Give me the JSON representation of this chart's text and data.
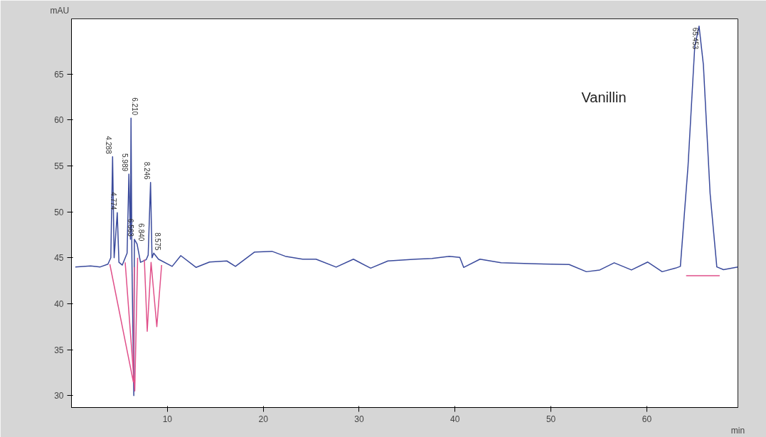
{
  "chart_data": {
    "type": "line",
    "xlabel": "min",
    "ylabel": "mAU",
    "xlim": [
      0,
      69.5
    ],
    "xticks": [
      10,
      20,
      30,
      40,
      50,
      60
    ],
    "ylim": [
      28.7,
      71.0
    ],
    "yticks": [
      30,
      35,
      40,
      45,
      50,
      55,
      60,
      65
    ],
    "grid": false,
    "marker": "none",
    "line_style": "solid",
    "series": [
      {
        "color": "#3a4a9c",
        "x": [
          0.4,
          2,
          3,
          3.8,
          4.1,
          4.288,
          4.45,
          4.774,
          4.95,
          5.3,
          5.8,
          5.989,
          6.15,
          6.21,
          6.3,
          6.5,
          6.563,
          6.84,
          7.2,
          7.8,
          8.0,
          8.246,
          8.4,
          8.575,
          9.07,
          10.5,
          11.4,
          13.0,
          14.4,
          16.2,
          17.1,
          19.1,
          20.9,
          22.3,
          24.1,
          25.5,
          27.6,
          29.4,
          31.2,
          33.0,
          35.9,
          37.6,
          39.4,
          40.5,
          40.9,
          42.6,
          44.8,
          48.4,
          51.9,
          53.7,
          55.1,
          56.6,
          58.4,
          60.1,
          61.6,
          63.0,
          63.5,
          64.3,
          65.0,
          65.45,
          65.9,
          66.6,
          67.3,
          68.0,
          69.5
        ],
        "values": [
          44.0,
          44.1,
          44.0,
          44.3,
          45.0,
          56.0,
          45.0,
          49.9,
          44.5,
          44.2,
          45.5,
          54.1,
          47.0,
          60.2,
          45.0,
          30.0,
          47.0,
          46.5,
          44.5,
          44.8,
          45.3,
          53.2,
          45.0,
          45.5,
          44.84,
          44.06,
          45.23,
          43.95,
          44.53,
          44.65,
          44.06,
          45.62,
          45.7,
          45.16,
          44.84,
          44.84,
          43.98,
          44.84,
          43.87,
          44.65,
          44.84,
          44.92,
          45.16,
          45.04,
          43.95,
          44.84,
          44.45,
          44.34,
          44.26,
          43.48,
          43.67,
          44.45,
          43.67,
          44.53,
          43.48,
          43.87,
          44.06,
          55.0,
          68.0,
          70.2,
          66.0,
          52.0,
          44.0,
          43.7,
          44.0
        ]
      },
      {
        "color": "#e0508a",
        "x": [
          4.0,
          6.45,
          6.55,
          null,
          5.6,
          6.6,
          6.9,
          null,
          7.6,
          7.9,
          8.3,
          8.9,
          9.4,
          null,
          64.1,
          67.6
        ],
        "values": [
          44.3,
          31.5,
          44.0,
          null,
          44.5,
          30.5,
          45.0,
          null,
          44.8,
          37.0,
          44.5,
          37.5,
          44.2,
          null,
          43.05,
          43.05
        ]
      }
    ],
    "annotations": [
      {
        "text": "4.288",
        "x": 4.288,
        "y": 56.0
      },
      {
        "text": "4.774",
        "x": 4.774,
        "y": 49.9
      },
      {
        "text": "5.989",
        "x": 5.989,
        "y": 54.1
      },
      {
        "text": "6.210",
        "x": 6.21,
        "y": 60.2
      },
      {
        "text": "6.563",
        "x": 6.563,
        "y": 47.0
      },
      {
        "text": "6.840",
        "x": 6.84,
        "y": 46.5
      },
      {
        "text": "8.246",
        "x": 8.246,
        "y": 53.2
      },
      {
        "text": "8.575",
        "x": 8.575,
        "y": 45.5
      },
      {
        "text": "65.453",
        "x": 65.45,
        "y": 70.2
      },
      "Vanillin"
    ]
  }
}
